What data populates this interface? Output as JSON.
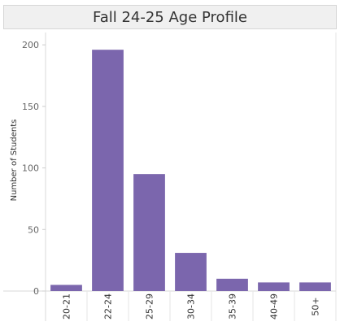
{
  "chart_data": {
    "type": "bar",
    "title": "Fall 24-25 Age Profile",
    "xlabel": "",
    "ylabel": "Number of Students",
    "categories": [
      "20-21",
      "22-24",
      "25-29",
      "30-34",
      "35-39",
      "40-49",
      "50+"
    ],
    "values": [
      5,
      196,
      95,
      31,
      10,
      7,
      7
    ],
    "ylim": [
      0,
      210
    ],
    "yticks": [
      0,
      50,
      100,
      150,
      200
    ],
    "grid": false,
    "bar_color": "#7b66ad"
  }
}
